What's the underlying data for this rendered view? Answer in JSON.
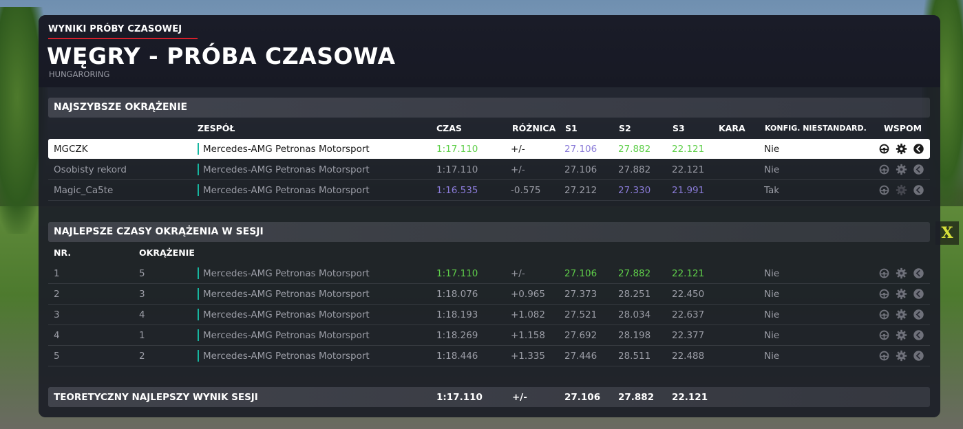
{
  "header": {
    "kicker": "WYNIKI PRÓBY CZASOWEJ",
    "title": "WĘGRY - PRÓBA CZASOWA",
    "subtitle": "HUNGARORING"
  },
  "fastest": {
    "section_title": "NAJSZYBSZE OKRĄŻENIE",
    "columns": {
      "team": "ZESPÓŁ",
      "time": "CZAS",
      "diff": "RÓŻNICA",
      "s1": "S1",
      "s2": "S2",
      "s3": "S3",
      "penalty": "KARA",
      "custom": "KONFIG. NIESTANDARD.",
      "assists": "WSPOM"
    },
    "rows": [
      {
        "name": "MGCZK",
        "team": "Mercedes-AMG Petronas Motorsport",
        "time": "1:17.110",
        "diff": "+/-",
        "s1": "27.106",
        "s2": "27.882",
        "s3": "22.121",
        "penalty": "",
        "custom": "Nie"
      },
      {
        "name": "Osobisty rekord",
        "team": "Mercedes-AMG Petronas Motorsport",
        "time": "1:17.110",
        "diff": "+/-",
        "s1": "27.106",
        "s2": "27.882",
        "s3": "22.121",
        "penalty": "",
        "custom": "Nie"
      },
      {
        "name": "Magic_Ca5te",
        "team": "Mercedes-AMG Petronas Motorsport",
        "time": "1:16.535",
        "diff": "-0.575",
        "s1": "27.212",
        "s2": "27.330",
        "s3": "21.991",
        "penalty": "",
        "custom": "Tak"
      }
    ]
  },
  "session": {
    "section_title": "NAJLEPSZE CZASY OKRĄŻENIA W SESJI",
    "columns": {
      "nr": "NR.",
      "lap": "OKRĄŻENIE"
    },
    "rows": [
      {
        "nr": "1",
        "lap": "5",
        "team": "Mercedes-AMG Petronas Motorsport",
        "time": "1:17.110",
        "diff": "+/-",
        "s1": "27.106",
        "s2": "27.882",
        "s3": "22.121",
        "custom": "Nie"
      },
      {
        "nr": "2",
        "lap": "3",
        "team": "Mercedes-AMG Petronas Motorsport",
        "time": "1:18.076",
        "diff": "+0.965",
        "s1": "27.373",
        "s2": "28.251",
        "s3": "22.450",
        "custom": "Nie"
      },
      {
        "nr": "3",
        "lap": "4",
        "team": "Mercedes-AMG Petronas Motorsport",
        "time": "1:18.193",
        "diff": "+1.082",
        "s1": "27.521",
        "s2": "28.034",
        "s3": "22.637",
        "custom": "Nie"
      },
      {
        "nr": "4",
        "lap": "1",
        "team": "Mercedes-AMG Petronas Motorsport",
        "time": "1:18.269",
        "diff": "+1.158",
        "s1": "27.692",
        "s2": "28.198",
        "s3": "22.377",
        "custom": "Nie"
      },
      {
        "nr": "5",
        "lap": "2",
        "team": "Mercedes-AMG Petronas Motorsport",
        "time": "1:18.446",
        "diff": "+1.335",
        "s1": "27.446",
        "s2": "28.511",
        "s3": "22.488",
        "custom": "Nie"
      }
    ]
  },
  "theoretical": {
    "label": "TEORETYCZNY NAJLEPSZY WYNIK SESJI",
    "time": "1:17.110",
    "diff": "+/-",
    "s1": "27.106",
    "s2": "27.882",
    "s3": "22.121"
  },
  "background": {
    "sign_text": "X"
  },
  "colors": {
    "team_accent": "#17b6a0",
    "kicker_underline": "#d6202b",
    "best_green": "#5fcf4a",
    "best_purple": "#8a7bd8",
    "highlight_row": "#ffffff"
  },
  "icons": [
    "steering-assist-icon",
    "gearbox-icon",
    "braking-assist-icon"
  ]
}
